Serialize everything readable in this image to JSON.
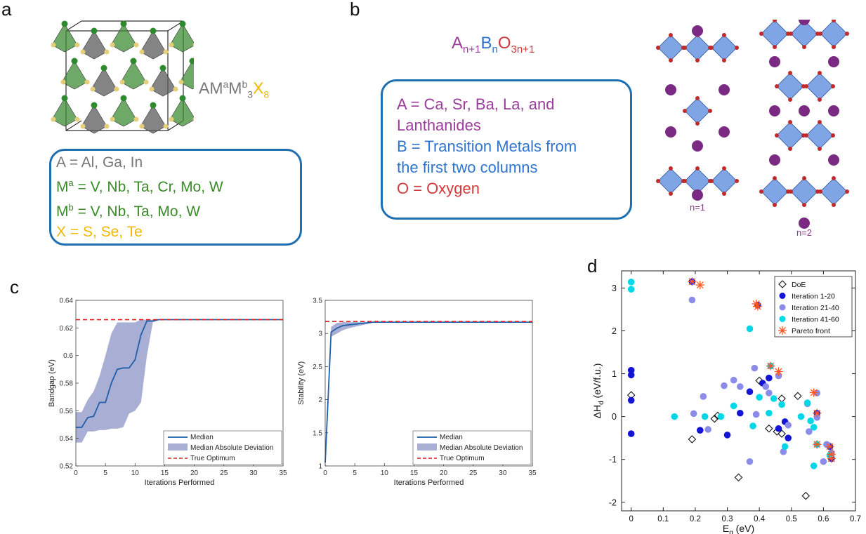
{
  "panel_a": {
    "label": "a",
    "formula": {
      "p1": "AM",
      "sup1": "a",
      "p2": "M",
      "sup2": "b",
      "sub1": "3",
      "p3": "X",
      "sub2": "8"
    },
    "lines": [
      {
        "sym": "A",
        "sup": "",
        "text": " = Al, Ga, In",
        "color": "#777777"
      },
      {
        "sym": "M",
        "sup": "a",
        "text": " = V, Nb, Ta, Cr, Mo, W",
        "color": "#3a8a2a"
      },
      {
        "sym": "M",
        "sup": "b",
        "text": " = V, Nb, Ta, Mo, W",
        "color": "#3a8a2a"
      },
      {
        "sym": "X",
        "sup": "",
        "text": " = S, Se, Te",
        "color": "#f2b705"
      }
    ]
  },
  "panel_b": {
    "label": "b",
    "formula": {
      "a": "A",
      "a_sub": "n+1",
      "b": "B",
      "b_sub": "n",
      "o": "O",
      "o_sub": "3n+1"
    },
    "lines": [
      {
        "text": "A = Ca, Sr, Ba, La, and",
        "color": "#9b3d9b"
      },
      {
        "text": "Lanthanides",
        "color": "#9b3d9b"
      },
      {
        "text": "B = Transition Metals from",
        "color": "#2f74d0"
      },
      {
        "text": "the first two columns",
        "color": "#2f74d0"
      },
      {
        "text": "O = Oxygen",
        "color": "#d23a3a"
      }
    ],
    "structure_labels": [
      "n=1",
      "n=2"
    ]
  },
  "panel_c_label": "c",
  "panel_d_label": "d",
  "colors": {
    "median": "#1f5fa8",
    "mad": "#a9aed4",
    "optimum": "#e02020",
    "doe": "#111111",
    "it1": "#1414d6",
    "it2": "#8b8bea",
    "it3": "#00d8e8",
    "pareto": "#ff5522",
    "frame": "#1f6fb0"
  },
  "chart_data": [
    {
      "type": "line",
      "xlabel": "Iterations Performed",
      "ylabel": "Bandgap (eV)",
      "xlim": [
        0,
        35
      ],
      "ylim": [
        0.52,
        0.64
      ],
      "xticks": [
        0,
        5,
        10,
        15,
        20,
        25,
        30,
        35
      ],
      "yticks": [
        0.52,
        0.54,
        0.56,
        0.58,
        0.6,
        0.62,
        0.64
      ],
      "ytick_labels": [
        "0.52",
        "0.54",
        "0.56",
        "0.58",
        "0.6",
        "0.62",
        "0.64"
      ],
      "optimum": 0.626,
      "legend": [
        "Median",
        "Median Absolute Deviation",
        "True Optimum"
      ],
      "median": {
        "x": [
          0,
          1,
          2,
          3,
          4,
          5,
          6,
          7,
          8,
          9,
          10,
          11,
          12,
          13,
          14,
          35
        ],
        "y": [
          0.548,
          0.548,
          0.555,
          0.556,
          0.566,
          0.566,
          0.58,
          0.59,
          0.591,
          0.591,
          0.597,
          0.615,
          0.625,
          0.625,
          0.626,
          0.626
        ]
      },
      "mad_upper": {
        "x": [
          0,
          1,
          2,
          3,
          4,
          5,
          6,
          7,
          8,
          9,
          10,
          11,
          12,
          13,
          14,
          35
        ],
        "y": [
          0.559,
          0.559,
          0.568,
          0.574,
          0.585,
          0.6,
          0.616,
          0.624,
          0.624,
          0.624,
          0.624,
          0.626,
          0.626,
          0.626,
          0.626,
          0.626
        ]
      },
      "mad_lower": {
        "x": [
          0,
          1,
          2,
          3,
          4,
          5,
          6,
          7,
          8,
          9,
          10,
          11,
          12,
          13,
          14,
          35
        ],
        "y": [
          0.537,
          0.537,
          0.545,
          0.545,
          0.546,
          0.546,
          0.547,
          0.547,
          0.548,
          0.558,
          0.56,
          0.566,
          0.6,
          0.624,
          0.626,
          0.626
        ]
      }
    },
    {
      "type": "line",
      "xlabel": "Iterations Performed",
      "ylabel": "Stability (eV)",
      "xlim": [
        0,
        35
      ],
      "ylim": [
        1,
        3.5
      ],
      "xticks": [
        0,
        5,
        10,
        15,
        20,
        25,
        30,
        35
      ],
      "yticks": [
        1,
        1.5,
        2,
        2.5,
        3,
        3.5
      ],
      "ytick_labels": [
        "1",
        "1.5",
        "2",
        "2.5",
        "3",
        "3.5"
      ],
      "optimum": 3.18,
      "legend": [
        "Median",
        "Median Absolute Deviation",
        "True Optimum"
      ],
      "median": {
        "x": [
          0,
          1,
          2,
          3,
          4,
          5,
          6,
          7,
          8,
          9,
          35
        ],
        "y": [
          1.05,
          3.02,
          3.08,
          3.12,
          3.13,
          3.14,
          3.15,
          3.16,
          3.17,
          3.17,
          3.17
        ]
      },
      "mad_upper": {
        "x": [
          0,
          1,
          2,
          3,
          4,
          5,
          6,
          7,
          8,
          9,
          35
        ],
        "y": [
          1.05,
          3.1,
          3.16,
          3.17,
          3.17,
          3.17,
          3.17,
          3.17,
          3.17,
          3.17,
          3.17
        ]
      },
      "mad_lower": {
        "x": [
          0,
          1,
          2,
          3,
          4,
          5,
          6,
          7,
          8,
          9,
          35
        ],
        "y": [
          1.05,
          2.95,
          3.0,
          3.05,
          3.08,
          3.1,
          3.12,
          3.14,
          3.16,
          3.17,
          3.17
        ]
      }
    },
    {
      "type": "scatter",
      "xlabel": "E",
      "xlabel_sub": "g",
      "xlabel_unit": " (eV)",
      "ylabel": "ΔH",
      "ylabel_sub": "d",
      "ylabel_unit": " (eV/f.u.)",
      "xlim": [
        -0.03,
        0.7
      ],
      "ylim": [
        -2.2,
        3.4
      ],
      "xticks": [
        0,
        0.1,
        0.2,
        0.3,
        0.4,
        0.5,
        0.6,
        0.7
      ],
      "xtick_labels": [
        "0",
        "0.1",
        "0.2",
        "0.3",
        "0.4",
        "0.5",
        "0.6",
        "0.7"
      ],
      "yticks": [
        -2,
        -1,
        0,
        1,
        2,
        3
      ],
      "ytick_labels": [
        "-2",
        "-1",
        "0",
        "1",
        "2",
        "3"
      ],
      "legend": [
        "DoE",
        "Iteration 1-20",
        "Iteration 21-40",
        "Iteration 41-60",
        "Pareto front"
      ],
      "series": [
        {
          "name": "DoE",
          "marker": "diamond",
          "points": [
            [
              0,
              0.5
            ],
            [
              0.19,
              -0.53
            ],
            [
              0.26,
              -0.05
            ],
            [
              0.27,
              0.02
            ],
            [
              0.335,
              -1.42
            ],
            [
              0.4,
              0.84
            ],
            [
              0.43,
              -0.28
            ],
            [
              0.455,
              -0.35
            ],
            [
              0.47,
              0.42
            ],
            [
              0.47,
              -0.4
            ],
            [
              0.52,
              0.48
            ],
            [
              0.545,
              -1.85
            ]
          ]
        },
        {
          "name": "Iteration 1-20",
          "marker": "circle",
          "points": [
            [
              0,
              1.08
            ],
            [
              0,
              0.97
            ],
            [
              0,
              0.38
            ],
            [
              0,
              -0.4
            ],
            [
              0.19,
              3.15
            ],
            [
              0.215,
              -0.32
            ],
            [
              0.3,
              -0.43
            ],
            [
              0.34,
              0.08
            ],
            [
              0.37,
              0.58
            ],
            [
              0.395,
              2.6
            ],
            [
              0.41,
              0.78
            ],
            [
              0.43,
              0.9
            ],
            [
              0.46,
              -0.28
            ],
            [
              0.48,
              -0.12
            ],
            [
              0.49,
              -0.5
            ],
            [
              0.58,
              0.08
            ],
            [
              0.62,
              -0.7
            ],
            [
              0.625,
              -0.98
            ]
          ]
        },
        {
          "name": "Iteration 21-40",
          "marker": "circle",
          "points": [
            [
              0.19,
              2.72
            ],
            [
              0.195,
              0.07
            ],
            [
              0.225,
              0.47
            ],
            [
              0.24,
              -0.3
            ],
            [
              0.29,
              0.72
            ],
            [
              0.32,
              0.85
            ],
            [
              0.34,
              0.7
            ],
            [
              0.37,
              -1.05
            ],
            [
              0.385,
              1.13
            ],
            [
              0.39,
              0.05
            ],
            [
              0.42,
              0.7
            ],
            [
              0.43,
              0.55
            ],
            [
              0.46,
              0.95
            ],
            [
              0.475,
              -0.82
            ],
            [
              0.49,
              -0.2
            ],
            [
              0.55,
              0.3
            ],
            [
              0.555,
              -0.35
            ],
            [
              0.58,
              -0.02
            ],
            [
              0.58,
              0.55
            ],
            [
              0.6,
              -1.05
            ],
            [
              0.61,
              -0.65
            ],
            [
              0.625,
              -0.85
            ]
          ]
        },
        {
          "name": "Iteration 41-60",
          "marker": "circle",
          "points": [
            [
              0,
              3.14
            ],
            [
              0,
              2.97
            ],
            [
              0.135,
              0.0
            ],
            [
              0.23,
              0.0
            ],
            [
              0.28,
              0.0
            ],
            [
              0.32,
              0.25
            ],
            [
              0.37,
              2.05
            ],
            [
              0.38,
              -0.22
            ],
            [
              0.4,
              0.45
            ],
            [
              0.43,
              0.08
            ],
            [
              0.435,
              1.18
            ],
            [
              0.445,
              0.42
            ],
            [
              0.47,
              0.28
            ],
            [
              0.48,
              -0.7
            ],
            [
              0.53,
              0.0
            ],
            [
              0.55,
              0.32
            ],
            [
              0.56,
              -0.1
            ],
            [
              0.57,
              -0.25
            ],
            [
              0.57,
              -1.15
            ],
            [
              0.58,
              -0.65
            ],
            [
              0.62,
              -0.9
            ]
          ]
        },
        {
          "name": "Pareto front",
          "marker": "star",
          "points": [
            [
              0.19,
              3.15
            ],
            [
              0.215,
              3.07
            ],
            [
              0.39,
              2.63
            ],
            [
              0.395,
              2.57
            ],
            [
              0.435,
              1.18
            ],
            [
              0.46,
              1.05
            ],
            [
              0.57,
              0.56
            ],
            [
              0.58,
              0.08
            ],
            [
              0.58,
              -0.65
            ],
            [
              0.62,
              -0.7
            ],
            [
              0.625,
              -0.88
            ],
            [
              0.625,
              -0.98
            ]
          ]
        }
      ]
    }
  ]
}
